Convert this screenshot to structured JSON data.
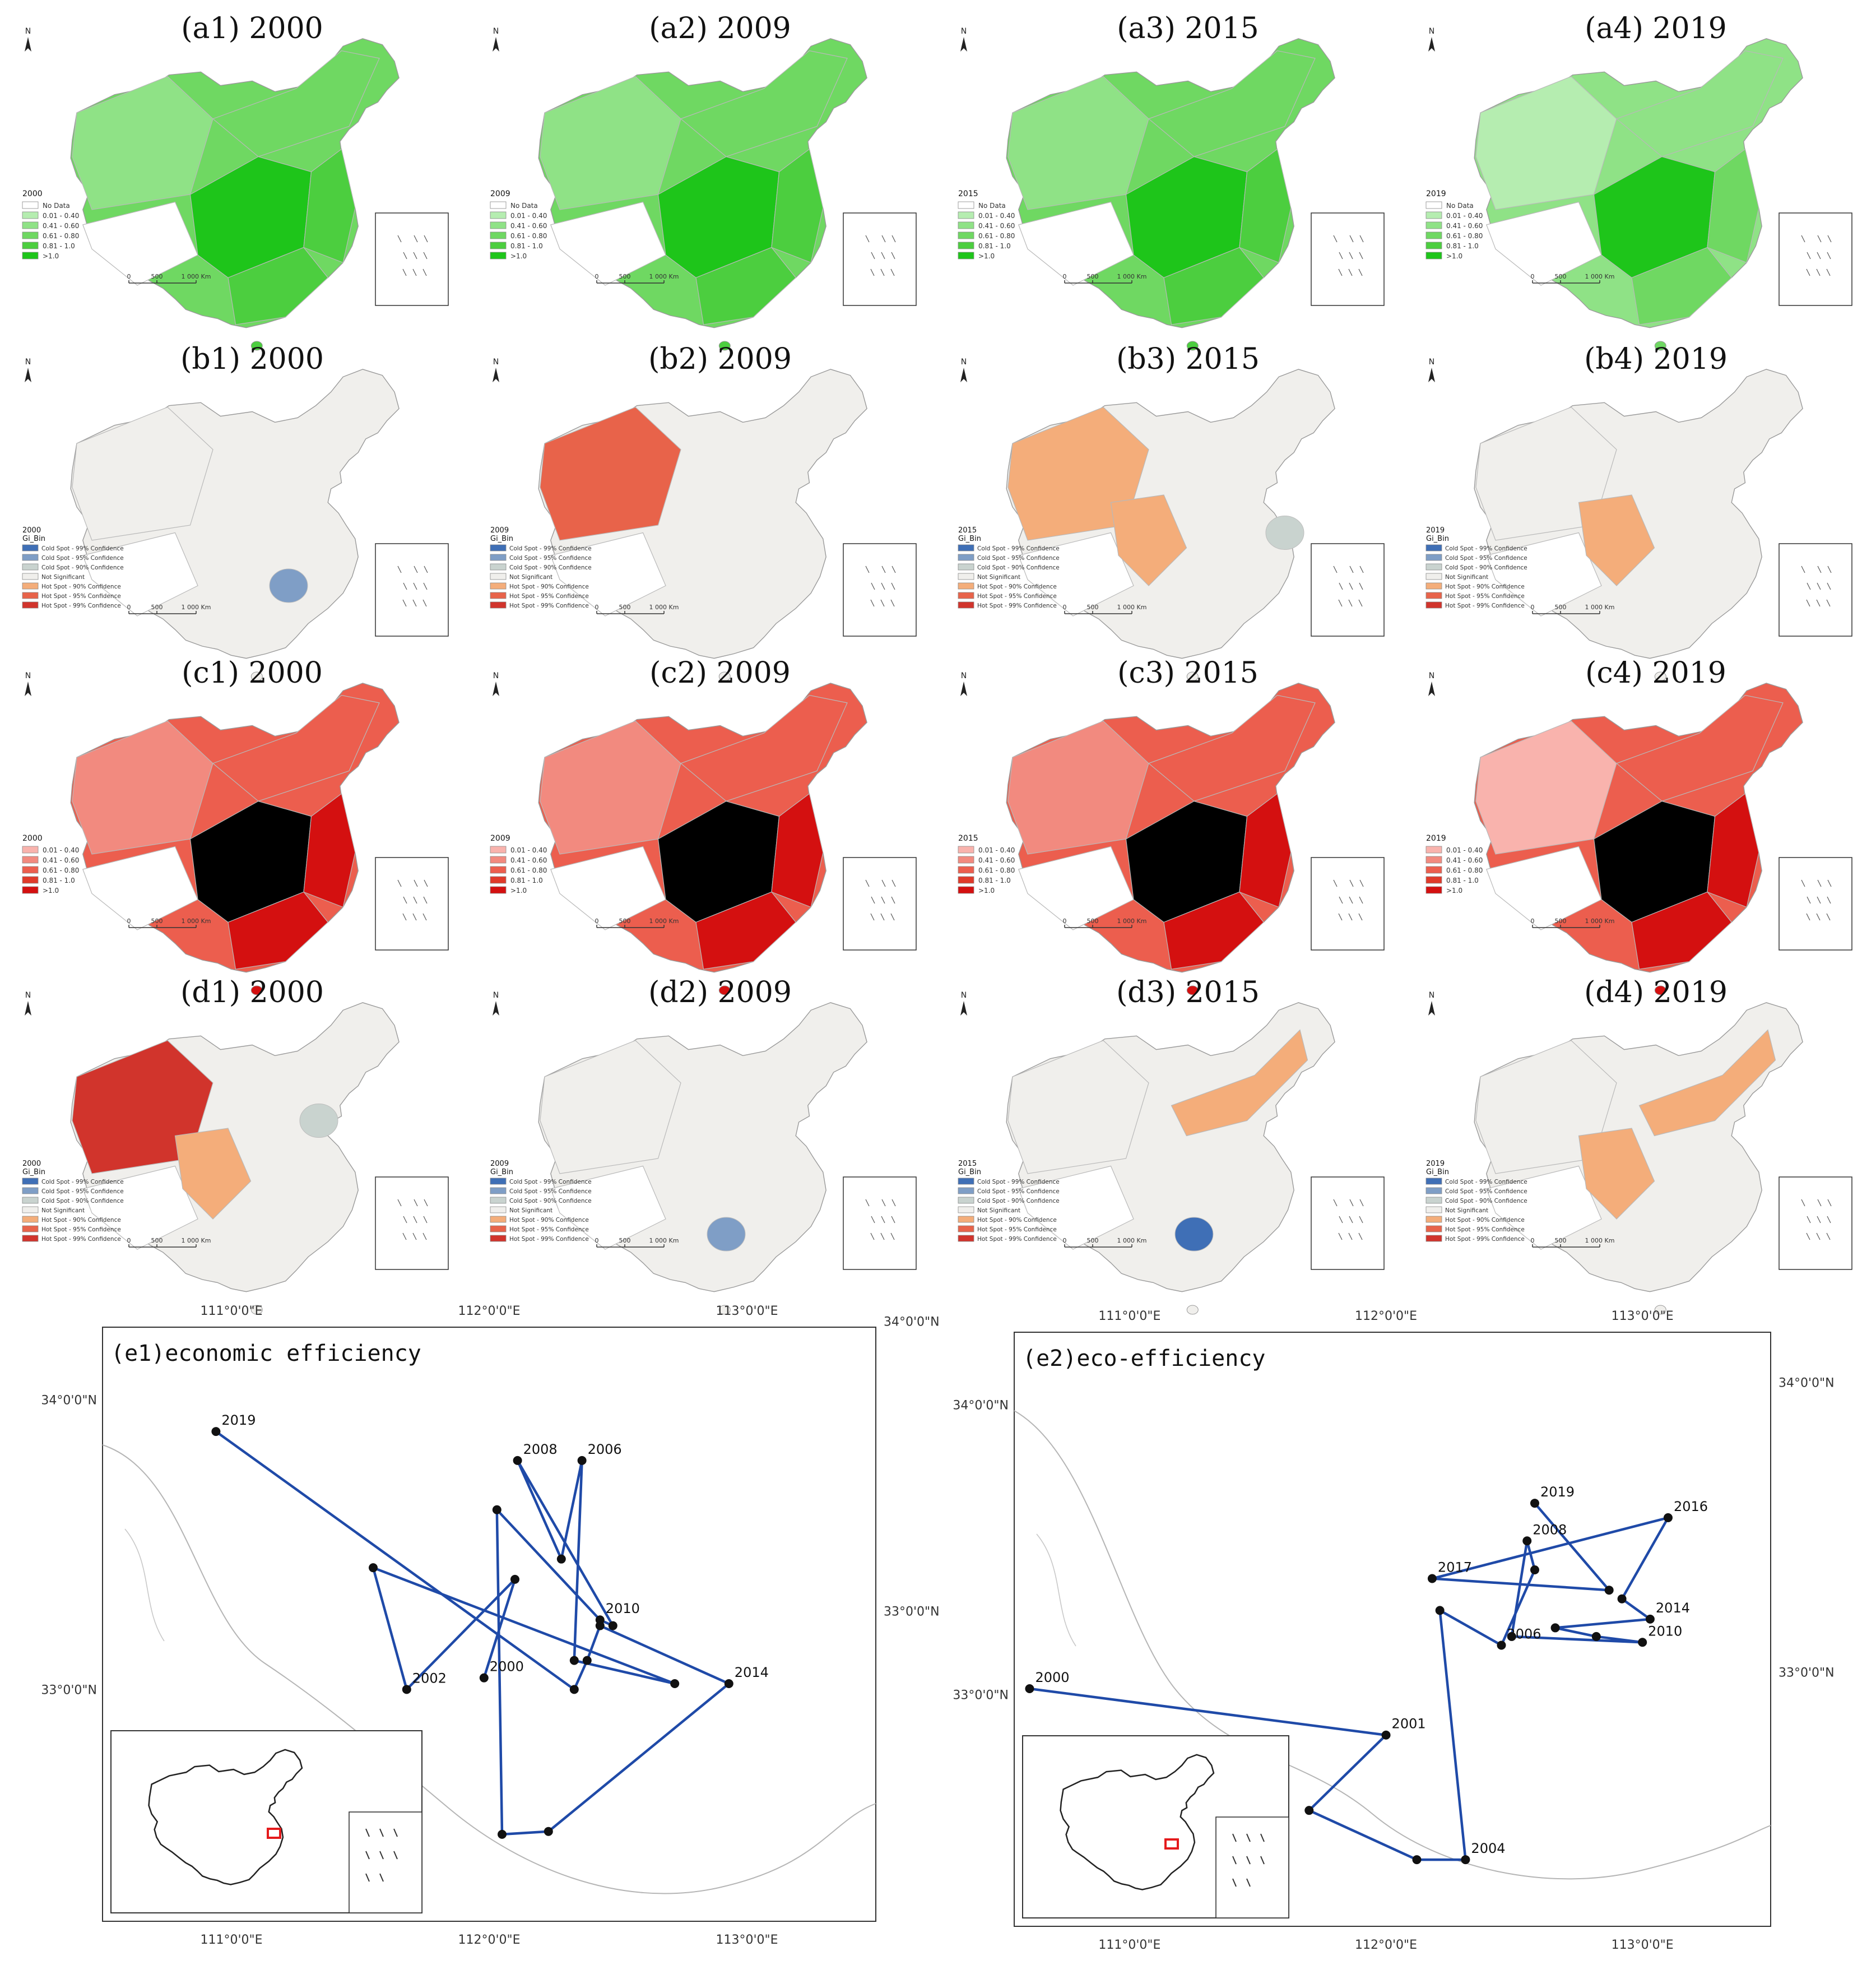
{
  "map_grid": {
    "rows": [
      {
        "row": "a",
        "kind": "efficiency",
        "panels": [
          {
            "title": "(a1) 2000",
            "legend_year": "2000",
            "legend_title": "",
            "classes": [
              "No Data",
              "0.01 - 0.40",
              "0.41 - 0.60",
              "0.61 - 0.80",
              "0.81 - 1.0",
              ">1.0"
            ]
          },
          {
            "title": "(a2) 2009",
            "legend_year": "2009",
            "legend_title": "",
            "classes": [
              "No Data",
              "0.01 - 0.40",
              "0.41 - 0.60",
              "0.61 - 0.80",
              "0.81 - 1.0",
              ">1.0"
            ]
          },
          {
            "title": "(a3) 2015",
            "legend_year": "2015",
            "legend_title": "",
            "classes": [
              "No Data",
              "0.01 - 0.40",
              "0.41 - 0.60",
              "0.61 - 0.80",
              "0.81 - 1.0",
              ">1.0"
            ]
          },
          {
            "title": "(a4) 2019",
            "legend_year": "2019",
            "legend_title": "",
            "classes": [
              "No Data",
              "0.01 - 0.40",
              "0.41 - 0.60",
              "0.61 - 0.80",
              "0.81 - 1.0",
              ">1.0"
            ]
          }
        ]
      },
      {
        "row": "b",
        "kind": "hotspot",
        "panels": [
          {
            "title": "(b1) 2000",
            "legend_year": "2000",
            "legend_title": "Gi_Bin",
            "classes": [
              "Cold Spot - 99% Confidence",
              "Cold Spot - 95% Confidence",
              "Cold Spot - 90% Confidence",
              "Not Significant",
              "Hot Spot - 90% Confidence",
              "Hot Spot - 95% Confidence",
              "Hot Spot - 99% Confidence"
            ]
          },
          {
            "title": "(b2) 2009",
            "legend_year": "2009",
            "legend_title": "Gi_Bin",
            "classes": [
              "Cold Spot - 99% Confidence",
              "Cold Spot - 95% Confidence",
              "Cold Spot - 90% Confidence",
              "Not Significant",
              "Hot Spot - 90% Confidence",
              "Hot Spot - 95% Confidence",
              "Hot Spot - 99% Confidence"
            ]
          },
          {
            "title": "(b3) 2015",
            "legend_year": "2015",
            "legend_title": "Gi_Bin",
            "classes": [
              "Cold Spot - 99% Confidence",
              "Cold Spot - 95% Confidence",
              "Cold Spot - 90% Confidence",
              "Not Significant",
              "Hot Spot - 90% Confidence",
              "Hot Spot - 95% Confidence",
              "Hot Spot - 99% Confidence"
            ]
          },
          {
            "title": "(b4) 2019",
            "legend_year": "2019",
            "legend_title": "Gi_Bin",
            "classes": [
              "Cold Spot - 99% Confidence",
              "Cold Spot - 95% Confidence",
              "Cold Spot - 90% Confidence",
              "Not Significant",
              "Hot Spot - 90% Confidence",
              "Hot Spot - 95% Confidence",
              "Hot Spot - 99% Confidence"
            ]
          }
        ]
      },
      {
        "row": "c",
        "kind": "efficiency",
        "panels": [
          {
            "title": "(c1) 2000",
            "legend_year": "2000",
            "legend_title": "",
            "classes": [
              "0.01 - 0.40",
              "0.41 - 0.60",
              "0.61 - 0.80",
              "0.81 - 1.0",
              ">1.0"
            ]
          },
          {
            "title": "(c2) 2009",
            "legend_year": "2009",
            "legend_title": "",
            "classes": [
              "0.01 - 0.40",
              "0.41 - 0.60",
              "0.61 - 0.80",
              "0.81 - 1.0",
              ">1.0"
            ]
          },
          {
            "title": "(c3) 2015",
            "legend_year": "2015",
            "legend_title": "",
            "classes": [
              "0.01 - 0.40",
              "0.41 - 0.60",
              "0.61 - 0.80",
              "0.81 - 1.0",
              ">1.0"
            ]
          },
          {
            "title": "(c4) 2019",
            "legend_year": "2019",
            "legend_title": "",
            "classes": [
              "0.01 - 0.40",
              "0.41 - 0.60",
              "0.61 - 0.80",
              "0.81 - 1.0",
              ">1.0"
            ]
          }
        ]
      },
      {
        "row": "d",
        "kind": "hotspot",
        "panels": [
          {
            "title": "(d1) 2000",
            "legend_year": "2000",
            "legend_title": "Gi_Bin",
            "classes": [
              "Cold Spot - 99% Confidence",
              "Cold Spot - 95% Confidence",
              "Cold Spot - 90% Confidence",
              "Not Significant",
              "Hot Spot - 90% Confidence",
              "Hot Spot - 95% Confidence",
              "Hot Spot - 99% Confidence"
            ]
          },
          {
            "title": "(d2) 2009",
            "legend_year": "2009",
            "legend_title": "Gi_Bin",
            "classes": [
              "Cold Spot - 99% Confidence",
              "Cold Spot - 95% Confidence",
              "Cold Spot - 90% Confidence",
              "Not Significant",
              "Hot Spot - 90% Confidence",
              "Hot Spot - 95% Confidence",
              "Hot Spot - 99% Confidence"
            ]
          },
          {
            "title": "(d3) 2015",
            "legend_year": "2015",
            "legend_title": "Gi_Bin",
            "classes": [
              "Cold Spot - 99% Confidence",
              "Cold Spot - 95% Confidence",
              "Cold Spot - 90% Confidence",
              "Not Significant",
              "Hot Spot - 90% Confidence",
              "Hot Spot - 95% Confidence",
              "Hot Spot - 99% Confidence"
            ]
          },
          {
            "title": "(d4) 2019",
            "legend_year": "2019",
            "legend_title": "Gi_Bin",
            "classes": [
              "Cold Spot - 99% Confidence",
              "Cold Spot - 95% Confidence",
              "Cold Spot - 90% Confidence",
              "Not Significant",
              "Hot Spot - 90% Confidence",
              "Hot Spot - 95% Confidence",
              "Hot Spot - 99% Confidence"
            ]
          }
        ]
      }
    ],
    "north_label": "N",
    "scale_labels": [
      "0",
      "500",
      "1 000 Km"
    ],
    "palettes": {
      "green": [
        "#ffffff",
        "#b5edb0",
        "#8fe286",
        "#6fd862",
        "#4cce3f",
        "#1ec51a"
      ],
      "red": [
        "#f9b3ad",
        "#f28a7f",
        "#ec5e4e",
        "#e03a2a",
        "#d41010"
      ],
      "hotspot": [
        "#3f6fb6",
        "#7f9ec6",
        "#c9d3cf",
        "#f0efec",
        "#f4ad7a",
        "#e8634a",
        "#d1342c"
      ]
    },
    "panel_colors": {
      "a": [
        [
          [
            "#8fe286",
            "#6fd862",
            "#4cce3f",
            "#1ec51a"
          ],
          []
        ],
        [
          [
            "#8fe286",
            "#6fd862",
            "#4cce3f",
            "#1ec51a"
          ],
          []
        ],
        [
          [
            "#8fe286",
            "#6fd862",
            "#4cce3f",
            "#1ec51a"
          ],
          []
        ],
        [
          [
            "#b5edb0",
            "#8fe286",
            "#6fd862",
            "#1ec51a"
          ],
          []
        ]
      ],
      "c": [
        [
          [
            "#f28a7f",
            "#ec5e4e",
            "#d41010"
          ],
          []
        ],
        [
          [
            "#f28a7f",
            "#ec5e4e",
            "#d41010"
          ],
          []
        ],
        [
          [
            "#f28a7f",
            "#ec5e4e",
            "#d41010"
          ],
          []
        ],
        [
          [
            "#f9b3ad",
            "#ec5e4e",
            "#d41010"
          ],
          []
        ]
      ],
      "b": [
        {
          "northwest": "#f0efec",
          "tibet": "#f0efec",
          "blob": "#7f9ec6",
          "blob_pos": "se",
          "extra": "none"
        },
        {
          "northwest": "#e8634a",
          "tibet": "#f0efec",
          "blob": "none",
          "blob_pos": "",
          "extra": "none"
        },
        {
          "northwest": "#f4ad7a",
          "tibet": "#f4ad7a",
          "blob": "#c9d3cf",
          "blob_pos": "e",
          "extra": "none"
        },
        {
          "northwest": "#f0efec",
          "tibet": "#f4ad7a",
          "blob": "none",
          "blob_pos": "",
          "extra": "none"
        }
      ],
      "d": [
        {
          "northwest": "#d1342c",
          "tibet": "#f4ad7a",
          "blob": "#c9d3cf",
          "blob_pos": "ne",
          "extra": "none"
        },
        {
          "northwest": "#f0efec",
          "tibet": "#f0efec",
          "blob": "#7f9ec6",
          "blob_pos": "s",
          "extra": "none"
        },
        {
          "northwest": "#f0efec",
          "tibet": "#f0efec",
          "blob": "#3f6fb6",
          "blob_pos": "s",
          "extra": "#f4ad7a"
        },
        {
          "northwest": "#f0efec",
          "tibet": "#f4ad7a",
          "blob": "none",
          "blob_pos": "",
          "extra": "#f4ad7a"
        }
      ]
    }
  },
  "trajectories": [
    {
      "title": "(e1)economic efficiency",
      "lon_top": [
        "111°0'0\"E",
        "112°0'0\"E",
        "113°0'0\"E"
      ],
      "lon_bottom": [
        "111°0'0\"E",
        "112°0'0\"E",
        "113°0'0\"E"
      ],
      "lat_left": [
        "34°0'0\"N",
        "33°0'0\"N"
      ],
      "lat_right": [
        "34°0'0\"N",
        "33°0'0\"N"
      ],
      "line_color": "#1f4aa8",
      "inset_box_color": "#e41a1c",
      "points": [
        {
          "lon": 111.98,
          "lat": 33.04,
          "label": "2000"
        },
        {
          "lon": 112.1,
          "lat": 33.38,
          "label": ""
        },
        {
          "lon": 111.68,
          "lat": 33.0,
          "label": "2002"
        },
        {
          "lon": 111.55,
          "lat": 33.42,
          "label": ""
        },
        {
          "lon": 112.72,
          "lat": 33.02,
          "label": ""
        },
        {
          "lon": 112.33,
          "lat": 33.1,
          "label": ""
        },
        {
          "lon": 112.36,
          "lat": 33.79,
          "label": "2006"
        },
        {
          "lon": 112.28,
          "lat": 33.45,
          "label": ""
        },
        {
          "lon": 112.11,
          "lat": 33.79,
          "label": "2008"
        },
        {
          "lon": 112.48,
          "lat": 33.22,
          "label": ""
        },
        {
          "lon": 112.43,
          "lat": 33.24,
          "label": "2010"
        },
        {
          "lon": 112.03,
          "lat": 33.62,
          "label": ""
        },
        {
          "lon": 112.05,
          "lat": 32.5,
          "label": ""
        },
        {
          "lon": 112.23,
          "lat": 32.51,
          "label": ""
        },
        {
          "lon": 112.93,
          "lat": 33.02,
          "label": "2014"
        },
        {
          "lon": 112.43,
          "lat": 33.22,
          "label": ""
        },
        {
          "lon": 112.38,
          "lat": 33.1,
          "label": ""
        },
        {
          "lon": 112.33,
          "lat": 33.0,
          "label": ""
        },
        {
          "lon": 110.94,
          "lat": 33.89,
          "label": "2019"
        }
      ]
    },
    {
      "title": "(e2)eco-efficiency",
      "lon_top": [
        "111°0'0\"E",
        "112°0'0\"E",
        "113°0'0\"E"
      ],
      "lon_bottom": [
        "111°0'0\"E",
        "112°0'0\"E",
        "113°0'0\"E"
      ],
      "lat_left": [
        "34°0'0\"N",
        "33°0'0\"N"
      ],
      "lat_right": [
        "34°0'0\"N",
        "33°0'0\"N"
      ],
      "line_color": "#1f4aa8",
      "inset_box_color": "#e41a1c",
      "points": [
        {
          "lon": 110.61,
          "lat": 33.02,
          "label": "2000"
        },
        {
          "lon": 112.0,
          "lat": 32.86,
          "label": "2001"
        },
        {
          "lon": 111.7,
          "lat": 32.6,
          "label": ""
        },
        {
          "lon": 112.12,
          "lat": 32.43,
          "label": ""
        },
        {
          "lon": 112.31,
          "lat": 32.43,
          "label": "2004"
        },
        {
          "lon": 112.21,
          "lat": 33.29,
          "label": ""
        },
        {
          "lon": 112.45,
          "lat": 33.17,
          "label": "2006"
        },
        {
          "lon": 112.58,
          "lat": 33.43,
          "label": ""
        },
        {
          "lon": 112.55,
          "lat": 33.53,
          "label": "2008"
        },
        {
          "lon": 112.49,
          "lat": 33.2,
          "label": ""
        },
        {
          "lon": 113.0,
          "lat": 33.18,
          "label": "2010"
        },
        {
          "lon": 112.82,
          "lat": 33.2,
          "label": ""
        },
        {
          "lon": 112.66,
          "lat": 33.23,
          "label": ""
        },
        {
          "lon": 113.03,
          "lat": 33.26,
          "label": "2014"
        },
        {
          "lon": 112.92,
          "lat": 33.33,
          "label": ""
        },
        {
          "lon": 113.1,
          "lat": 33.61,
          "label": "2016"
        },
        {
          "lon": 112.18,
          "lat": 33.4,
          "label": "2017"
        },
        {
          "lon": 112.87,
          "lat": 33.36,
          "label": ""
        },
        {
          "lon": 112.58,
          "lat": 33.66,
          "label": "2019"
        }
      ]
    }
  ]
}
